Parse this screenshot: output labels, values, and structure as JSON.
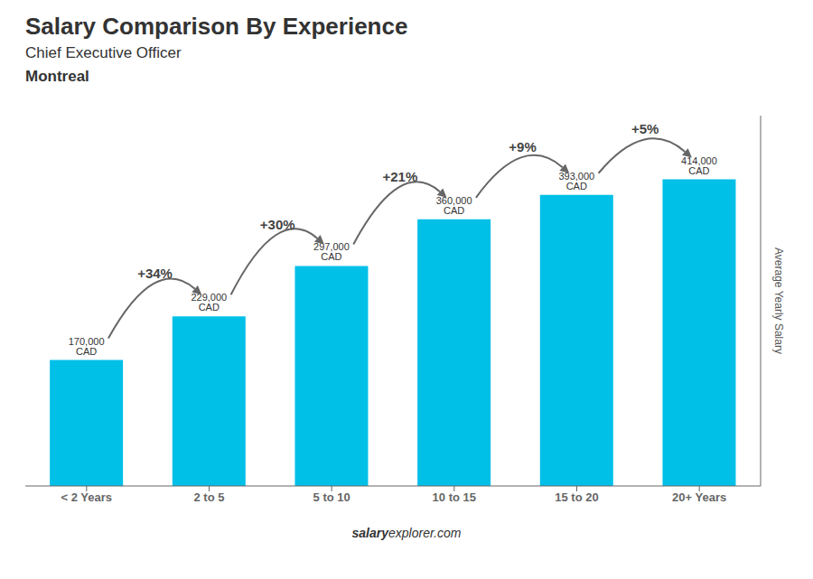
{
  "chart_data": {
    "type": "bar",
    "title": "Salary Comparison By Experience",
    "subtitle": "Chief Executive Officer",
    "city": "Montreal",
    "categories": [
      "< 2 Years",
      "2 to 5",
      "5 to 10",
      "10 to 15",
      "15 to 20",
      "20+ Years"
    ],
    "values": [
      170000,
      229000,
      297000,
      360000,
      393000,
      414000
    ],
    "value_labels": [
      "170,000 CAD",
      "229,000 CAD",
      "297,000 CAD",
      "360,000 CAD",
      "393,000 CAD",
      "414,000 CAD"
    ],
    "data_labels": true,
    "annotations": [
      "+34%",
      "+30%",
      "+21%",
      "+9%",
      "+5%"
    ],
    "ylabel": "Average Yearly Salary",
    "ylim": [
      0,
      500000
    ],
    "tick_labels": "x",
    "color": "#00c0e8",
    "footer": [
      "salary",
      "explorer.com"
    ]
  }
}
